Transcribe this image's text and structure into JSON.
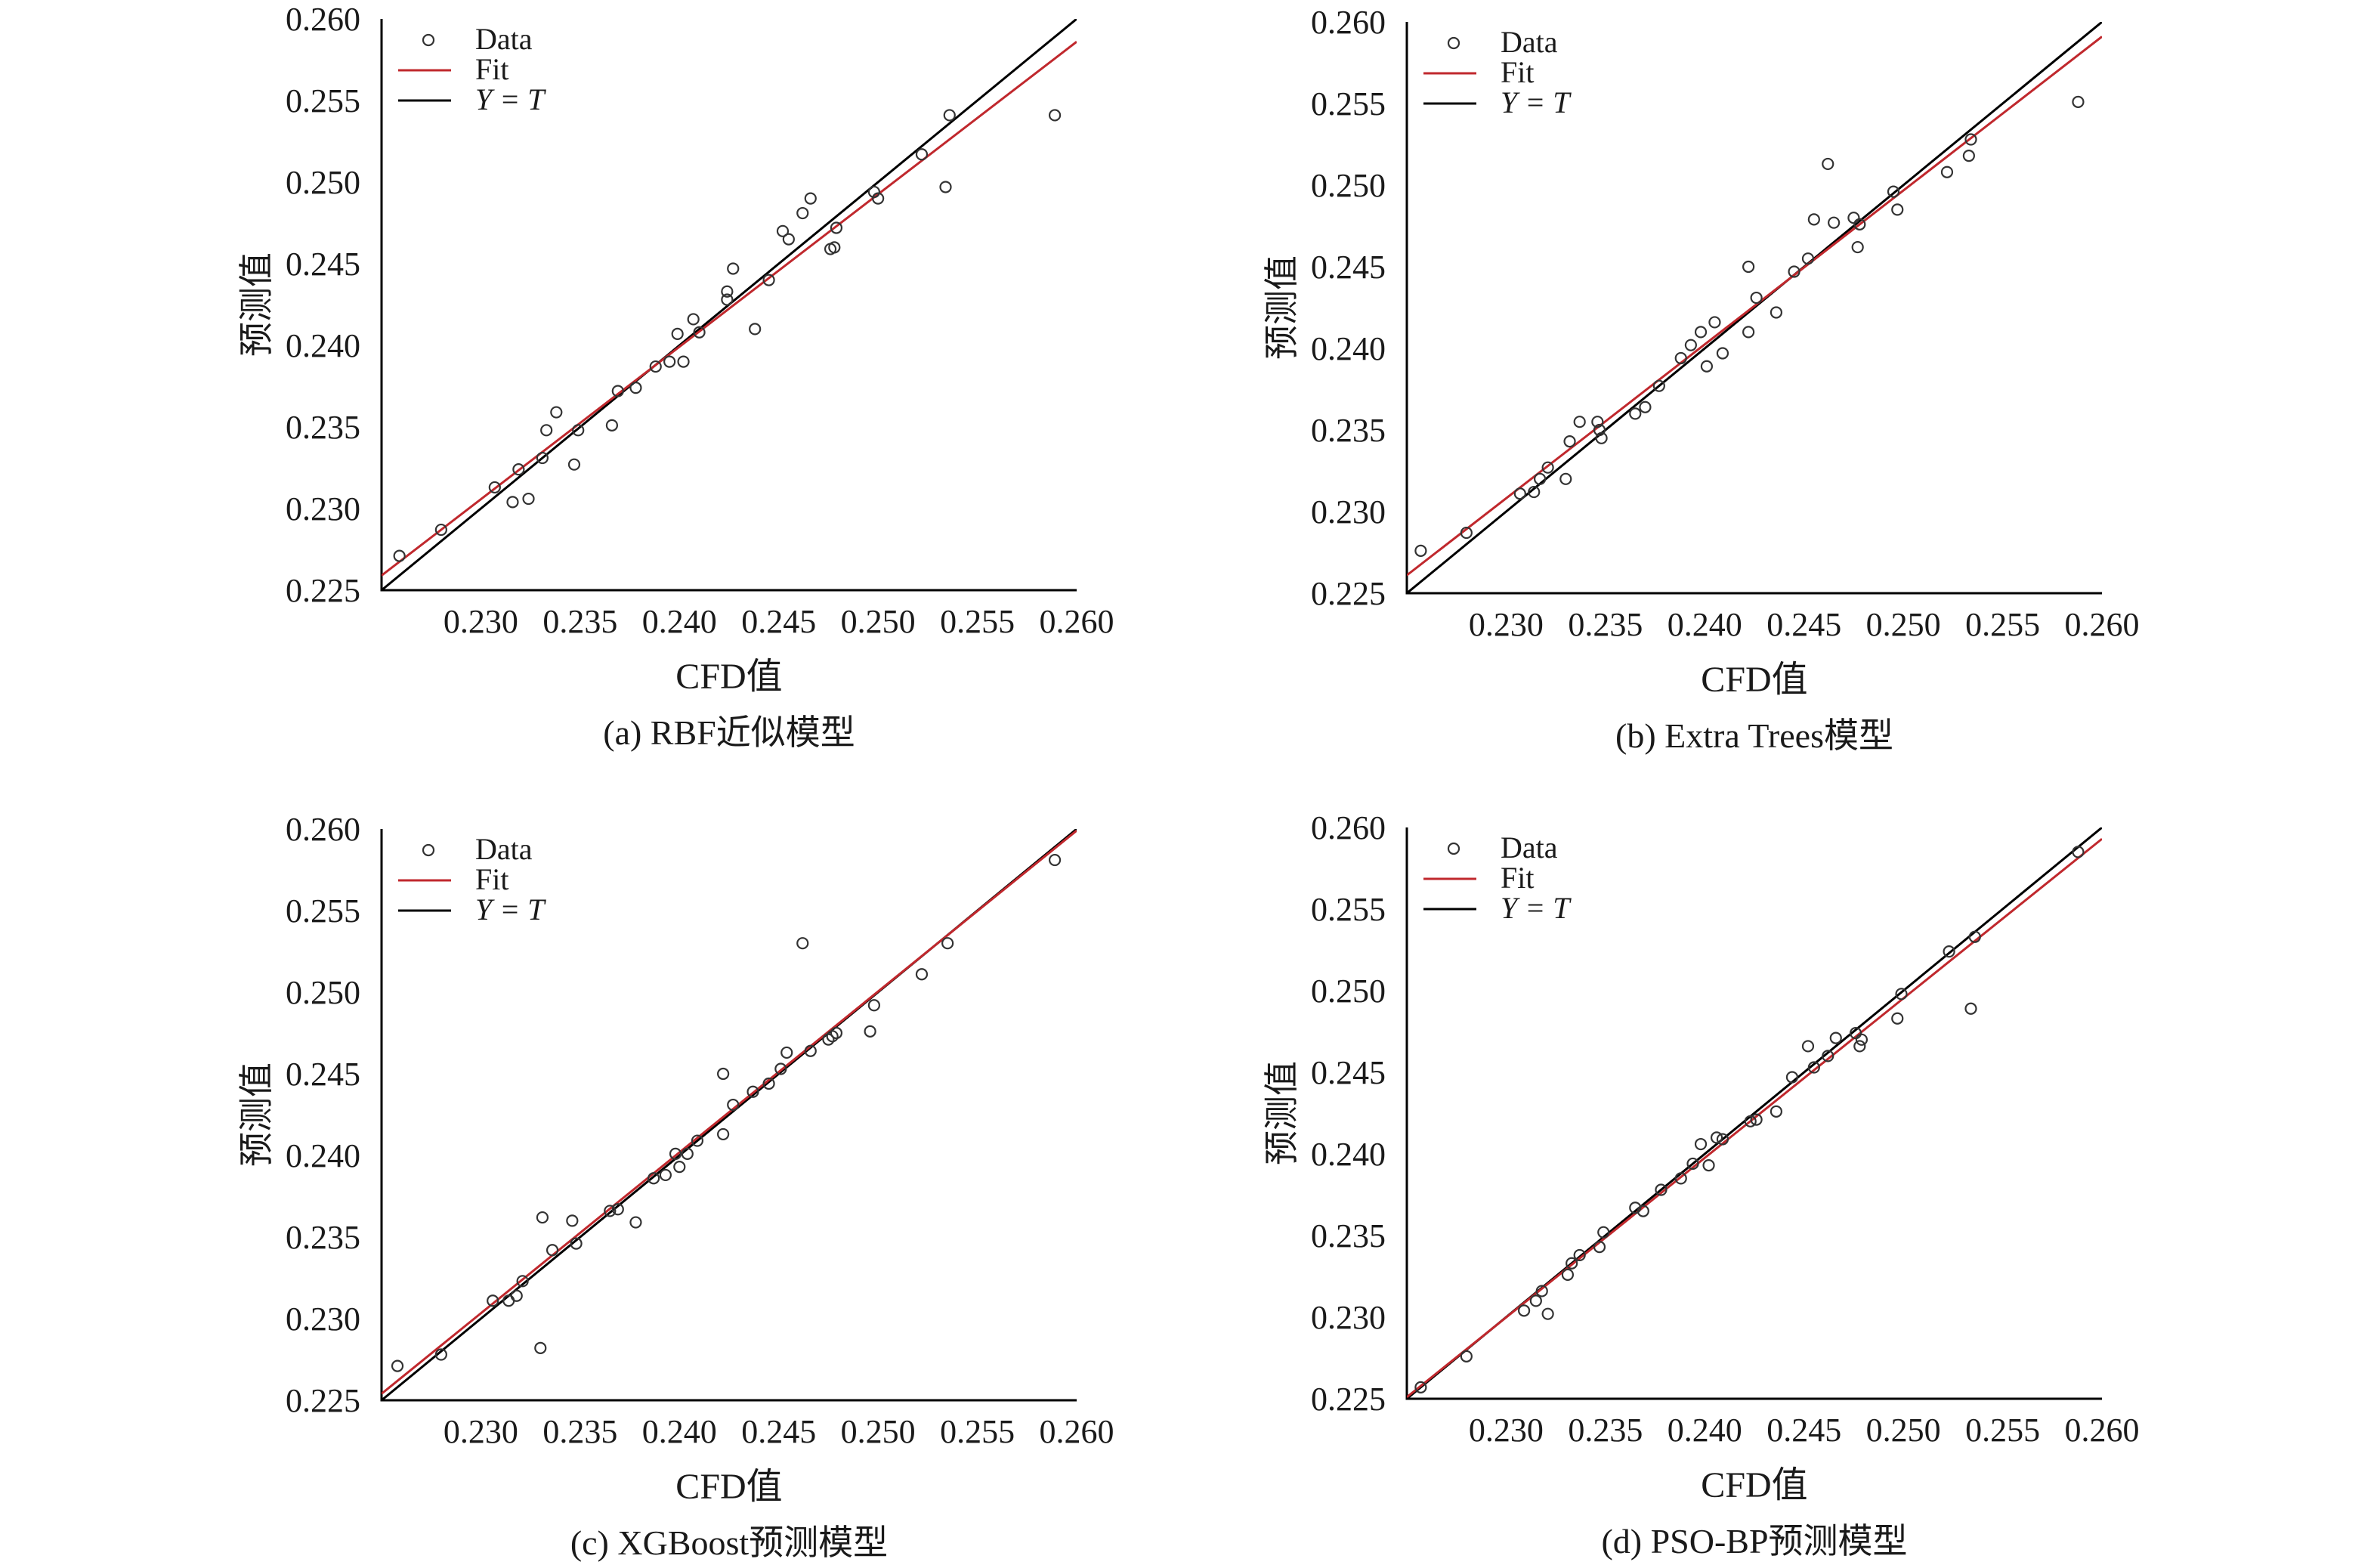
{
  "chart_data": [
    {
      "type": "scatter",
      "caption": "(a) RBF近似模型",
      "xlabel": "CFD值",
      "ylabel": "预测值",
      "xlim": [
        0.225,
        0.26
      ],
      "ylim": [
        0.225,
        0.26
      ],
      "xticks": [
        "0.230",
        "0.235",
        "0.240",
        "0.245",
        "0.250",
        "0.255",
        "0.260"
      ],
      "yticks": [
        "0.225",
        "0.230",
        "0.235",
        "0.240",
        "0.245",
        "0.250",
        "0.255",
        "0.260"
      ],
      "legend": {
        "position": "top-left",
        "items": [
          "Data",
          "Fit",
          "Y = T"
        ]
      },
      "colors": {
        "data": "#333333",
        "fit": "#c0282d",
        "identity": "#000000"
      },
      "fit": {
        "x": [
          0.225,
          0.26
        ],
        "y": [
          0.2259,
          0.2586
        ]
      },
      "identity": {
        "x": [
          0.225,
          0.26
        ],
        "y": [
          0.225,
          0.26
        ]
      },
      "points": [
        [
          0.2259,
          0.2271
        ],
        [
          0.228,
          0.2287
        ],
        [
          0.2307,
          0.2313
        ],
        [
          0.2316,
          0.2304
        ],
        [
          0.2319,
          0.2324
        ],
        [
          0.2324,
          0.2306
        ],
        [
          0.2331,
          0.2331
        ],
        [
          0.2333,
          0.2348
        ],
        [
          0.2338,
          0.2359
        ],
        [
          0.2347,
          0.2327
        ],
        [
          0.2349,
          0.2348
        ],
        [
          0.2366,
          0.2351
        ],
        [
          0.2369,
          0.2372
        ],
        [
          0.2378,
          0.2374
        ],
        [
          0.2388,
          0.2387
        ],
        [
          0.2395,
          0.239
        ],
        [
          0.2399,
          0.2407
        ],
        [
          0.2402,
          0.239
        ],
        [
          0.2407,
          0.2416
        ],
        [
          0.241,
          0.2408
        ],
        [
          0.2424,
          0.2433
        ],
        [
          0.2424,
          0.2428
        ],
        [
          0.2427,
          0.2447
        ],
        [
          0.2438,
          0.241
        ],
        [
          0.2445,
          0.244
        ],
        [
          0.2452,
          0.247
        ],
        [
          0.2455,
          0.2465
        ],
        [
          0.2462,
          0.2481
        ],
        [
          0.2466,
          0.249
        ],
        [
          0.2476,
          0.2459
        ],
        [
          0.2478,
          0.246
        ],
        [
          0.2479,
          0.2472
        ],
        [
          0.2498,
          0.2494
        ],
        [
          0.25,
          0.249
        ],
        [
          0.2522,
          0.2517
        ],
        [
          0.2534,
          0.2497
        ],
        [
          0.2536,
          0.2541
        ],
        [
          0.2589,
          0.2541
        ]
      ]
    },
    {
      "type": "scatter",
      "caption": "(b) Extra Trees模型",
      "xlabel": "CFD值",
      "ylabel": "预测值",
      "xlim": [
        0.225,
        0.26
      ],
      "ylim": [
        0.225,
        0.26
      ],
      "xticks": [
        "0.230",
        "0.235",
        "0.240",
        "0.245",
        "0.250",
        "0.255",
        "0.260"
      ],
      "yticks": [
        "0.225",
        "0.230",
        "0.235",
        "0.240",
        "0.245",
        "0.250",
        "0.255",
        "0.260"
      ],
      "legend": {
        "position": "top-left",
        "items": [
          "Data",
          "Fit",
          "Y = T"
        ]
      },
      "colors": {
        "data": "#333333",
        "fit": "#c0282d",
        "identity": "#000000"
      },
      "fit": {
        "x": [
          0.225,
          0.26
        ],
        "y": [
          0.2261,
          0.2591
        ]
      },
      "identity": {
        "x": [
          0.225,
          0.26
        ],
        "y": [
          0.225,
          0.26
        ]
      },
      "points": [
        [
          0.2257,
          0.2276
        ],
        [
          0.228,
          0.2287
        ],
        [
          0.2307,
          0.2311
        ],
        [
          0.2314,
          0.2312
        ],
        [
          0.2317,
          0.232
        ],
        [
          0.2321,
          0.2327
        ],
        [
          0.233,
          0.232
        ],
        [
          0.2332,
          0.2343
        ],
        [
          0.2337,
          0.2355
        ],
        [
          0.2346,
          0.2355
        ],
        [
          0.2347,
          0.235
        ],
        [
          0.2348,
          0.2345
        ],
        [
          0.2365,
          0.236
        ],
        [
          0.237,
          0.2364
        ],
        [
          0.2377,
          0.2377
        ],
        [
          0.2388,
          0.2394
        ],
        [
          0.2393,
          0.2402
        ],
        [
          0.2398,
          0.241
        ],
        [
          0.2401,
          0.2389
        ],
        [
          0.2405,
          0.2416
        ],
        [
          0.2409,
          0.2397
        ],
        [
          0.2422,
          0.241
        ],
        [
          0.2422,
          0.245
        ],
        [
          0.2426,
          0.2431
        ],
        [
          0.2436,
          0.2422
        ],
        [
          0.2445,
          0.2447
        ],
        [
          0.2452,
          0.2455
        ],
        [
          0.2455,
          0.2479
        ],
        [
          0.2462,
          0.2513
        ],
        [
          0.2465,
          0.2477
        ],
        [
          0.2475,
          0.248
        ],
        [
          0.2477,
          0.2462
        ],
        [
          0.2478,
          0.2476
        ],
        [
          0.2495,
          0.2496
        ],
        [
          0.2497,
          0.2485
        ],
        [
          0.2522,
          0.2508
        ],
        [
          0.2533,
          0.2518
        ],
        [
          0.2534,
          0.2528
        ],
        [
          0.2588,
          0.2551
        ]
      ]
    },
    {
      "type": "scatter",
      "caption": "(c) XGBoost预测模型",
      "xlabel": "CFD值",
      "ylabel": "预测值",
      "xlim": [
        0.225,
        0.26
      ],
      "ylim": [
        0.225,
        0.26
      ],
      "xticks": [
        "0.230",
        "0.235",
        "0.240",
        "0.245",
        "0.250",
        "0.255",
        "0.260"
      ],
      "yticks": [
        "0.225",
        "0.230",
        "0.235",
        "0.240",
        "0.245",
        "0.250",
        "0.255",
        "0.260"
      ],
      "legend": {
        "position": "top-left",
        "items": [
          "Data",
          "Fit",
          "Y = T"
        ]
      },
      "colors": {
        "data": "#333333",
        "fit": "#c0282d",
        "identity": "#000000"
      },
      "fit": {
        "x": [
          0.225,
          0.26
        ],
        "y": [
          0.2254,
          0.2599
        ]
      },
      "identity": {
        "x": [
          0.225,
          0.26
        ],
        "y": [
          0.225,
          0.26
        ]
      },
      "points": [
        [
          0.2258,
          0.2271
        ],
        [
          0.228,
          0.2278
        ],
        [
          0.2306,
          0.2311
        ],
        [
          0.2314,
          0.2311
        ],
        [
          0.2318,
          0.2314
        ],
        [
          0.2321,
          0.2323
        ],
        [
          0.233,
          0.2282
        ],
        [
          0.2331,
          0.2362
        ],
        [
          0.2336,
          0.2342
        ],
        [
          0.2346,
          0.236
        ],
        [
          0.2348,
          0.2346
        ],
        [
          0.2365,
          0.2366
        ],
        [
          0.2369,
          0.2367
        ],
        [
          0.2378,
          0.2359
        ],
        [
          0.2387,
          0.2386
        ],
        [
          0.2393,
          0.2388
        ],
        [
          0.2398,
          0.2401
        ],
        [
          0.24,
          0.2393
        ],
        [
          0.2404,
          0.2401
        ],
        [
          0.2409,
          0.2409
        ],
        [
          0.2422,
          0.245
        ],
        [
          0.2422,
          0.2413
        ],
        [
          0.2427,
          0.2431
        ],
        [
          0.2437,
          0.2439
        ],
        [
          0.2445,
          0.2444
        ],
        [
          0.2451,
          0.2453
        ],
        [
          0.2454,
          0.2463
        ],
        [
          0.2462,
          0.253
        ],
        [
          0.2466,
          0.2464
        ],
        [
          0.2475,
          0.2471
        ],
        [
          0.2477,
          0.2473
        ],
        [
          0.2479,
          0.2475
        ],
        [
          0.2496,
          0.2476
        ],
        [
          0.2498,
          0.2492
        ],
        [
          0.2522,
          0.2511
        ],
        [
          0.2535,
          0.253
        ],
        [
          0.2589,
          0.2581
        ]
      ]
    },
    {
      "type": "scatter",
      "caption": "(d) PSO-BP预测模型",
      "xlabel": "CFD值",
      "ylabel": "预测值",
      "xlim": [
        0.225,
        0.26
      ],
      "ylim": [
        0.225,
        0.26
      ],
      "xticks": [
        "0.230",
        "0.235",
        "0.240",
        "0.245",
        "0.250",
        "0.255",
        "0.260"
      ],
      "yticks": [
        "0.225",
        "0.230",
        "0.235",
        "0.240",
        "0.245",
        "0.250",
        "0.255",
        "0.260"
      ],
      "legend": {
        "position": "top-left",
        "items": [
          "Data",
          "Fit",
          "Y = T"
        ]
      },
      "colors": {
        "data": "#333333",
        "fit": "#c0282d",
        "identity": "#000000"
      },
      "fit": {
        "x": [
          0.225,
          0.26
        ],
        "y": [
          0.2251,
          0.2593
        ]
      },
      "identity": {
        "x": [
          0.225,
          0.26
        ],
        "y": [
          0.225,
          0.26
        ]
      },
      "points": [
        [
          0.2257,
          0.2257
        ],
        [
          0.228,
          0.2276
        ],
        [
          0.2309,
          0.2304
        ],
        [
          0.2315,
          0.231
        ],
        [
          0.2318,
          0.2316
        ],
        [
          0.2321,
          0.2302
        ],
        [
          0.2331,
          0.2326
        ],
        [
          0.2333,
          0.2333
        ],
        [
          0.2337,
          0.2338
        ],
        [
          0.2347,
          0.2343
        ],
        [
          0.2349,
          0.2352
        ],
        [
          0.2365,
          0.2367
        ],
        [
          0.2369,
          0.2365
        ],
        [
          0.2378,
          0.2378
        ],
        [
          0.2388,
          0.2385
        ],
        [
          0.2394,
          0.2394
        ],
        [
          0.2398,
          0.2406
        ],
        [
          0.2402,
          0.2393
        ],
        [
          0.2406,
          0.241
        ],
        [
          0.2409,
          0.2409
        ],
        [
          0.2423,
          0.242
        ],
        [
          0.2426,
          0.2421
        ],
        [
          0.2436,
          0.2426
        ],
        [
          0.2444,
          0.2447
        ],
        [
          0.2452,
          0.2466
        ],
        [
          0.2455,
          0.2453
        ],
        [
          0.2462,
          0.246
        ],
        [
          0.2466,
          0.2471
        ],
        [
          0.2476,
          0.2474
        ],
        [
          0.2478,
          0.2466
        ],
        [
          0.2479,
          0.247
        ],
        [
          0.2497,
          0.2483
        ],
        [
          0.2499,
          0.2498
        ],
        [
          0.2523,
          0.2524
        ],
        [
          0.2534,
          0.2489
        ],
        [
          0.2536,
          0.2533
        ],
        [
          0.2588,
          0.2585
        ]
      ]
    }
  ]
}
